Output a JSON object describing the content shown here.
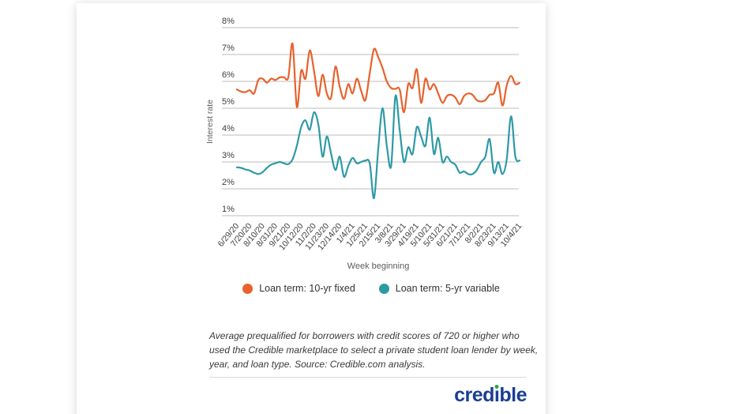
{
  "chart_data": {
    "type": "line",
    "title": "",
    "xlabel": "Week beginning",
    "ylabel": "Interest rate",
    "ylim": [
      1,
      8
    ],
    "y_tick_labels": [
      "8%",
      "7%",
      "6%",
      "5%",
      "4%",
      "3%",
      "2%",
      "1%"
    ],
    "y_tick_values": [
      8,
      7,
      6,
      5,
      4,
      3,
      2,
      1
    ],
    "grid": true,
    "legend_position": "bottom",
    "x_tick_every": 3,
    "n_points": 67,
    "x_tick_labels": [
      "6/29/20",
      "7/20/20",
      "8/10/20",
      "8/31/20",
      "9/21/20",
      "10/12/20",
      "11/2/20",
      "11/23/20",
      "12/14/20",
      "1/4/21",
      "1/25/21",
      "2/15/21",
      "3/8/21",
      "3/29/21",
      "4/19/21",
      "5/10/21",
      "5/31/21",
      "6/21/21",
      "7/12/21",
      "8/2/21",
      "8/23/21",
      "9/13/21",
      "10/4/21"
    ],
    "series": [
      {
        "name": "Loan term: 10-yr fixed",
        "color": "#e7622c",
        "values": [
          5.7,
          5.62,
          5.6,
          5.67,
          5.55,
          6.05,
          6.1,
          5.95,
          6.1,
          6.05,
          6.15,
          6.15,
          6.15,
          7.4,
          5.05,
          6.4,
          6.1,
          7.15,
          6.4,
          5.45,
          6.25,
          5.55,
          5.4,
          6.55,
          5.8,
          5.35,
          5.9,
          5.55,
          6.1,
          5.65,
          5.3,
          6.3,
          7.2,
          6.9,
          6.5,
          6.0,
          5.75,
          5.72,
          5.7,
          4.85,
          5.9,
          5.75,
          6.45,
          5.2,
          6.1,
          5.7,
          5.9,
          5.55,
          5.2,
          5.45,
          5.5,
          5.4,
          5.15,
          5.45,
          5.55,
          5.5,
          5.3,
          5.25,
          5.3,
          5.5,
          5.55,
          5.95,
          5.1,
          5.85,
          6.2,
          5.9,
          5.95
        ]
      },
      {
        "name": "Loan term: 5-yr variable",
        "color": "#2d9aa6",
        "values": [
          2.8,
          2.78,
          2.72,
          2.68,
          2.6,
          2.55,
          2.62,
          2.78,
          2.9,
          2.95,
          3.0,
          2.95,
          2.92,
          3.1,
          3.6,
          4.3,
          4.55,
          4.2,
          4.85,
          4.4,
          3.2,
          3.95,
          3.3,
          2.7,
          3.2,
          2.45,
          2.85,
          3.15,
          2.95,
          3.0,
          3.05,
          2.95,
          1.65,
          3.5,
          5.0,
          3.6,
          2.85,
          5.45,
          4.2,
          3.0,
          3.55,
          3.3,
          4.3,
          3.95,
          3.6,
          4.65,
          3.3,
          3.9,
          3.0,
          3.2,
          3.0,
          2.9,
          2.6,
          2.65,
          2.55,
          2.55,
          2.7,
          3.0,
          3.2,
          3.85,
          2.6,
          3.0,
          2.55,
          3.1,
          4.7,
          3.2,
          3.05
        ]
      }
    ]
  },
  "footnote": {
    "text": "Average prequalified for borrowers with credit scores of 720 or higher who used the Credible marketplace to select a private student loan lender by week, year, and loan type. Source: Credible.com analysis."
  },
  "brand": {
    "logo_pre": "cred",
    "logo_i": "ı",
    "logo_post": "ble",
    "logo_color": "#1a3e96",
    "logo_dot_color": "#2ba84a"
  },
  "style": {
    "gridline_color": "#bdbdbd",
    "tick_label_color": "#3d3d3d",
    "axis_title_color": "#5c5c5c"
  }
}
